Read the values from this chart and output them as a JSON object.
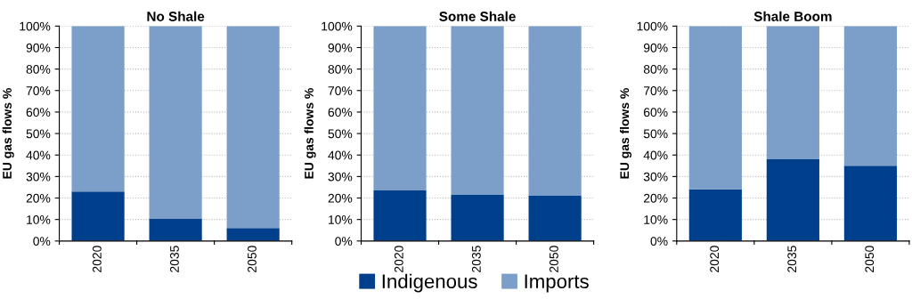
{
  "chart_data": [
    {
      "type": "bar",
      "title": "No Shale",
      "ylabel": "EU gas flows %",
      "categories": [
        "2020",
        "2035",
        "2050"
      ],
      "stacked": true,
      "series": [
        {
          "color": "#003f8c",
          "values": [
            23,
            10.5,
            6
          ]
        },
        {
          "color": "#7b9fc8",
          "values": [
            77,
            89.5,
            94
          ]
        }
      ],
      "ylim": [
        0,
        100
      ],
      "yticks": [
        {
          "value": 0,
          "label": "0%"
        },
        {
          "value": 10,
          "label": "10%"
        },
        {
          "value": 20,
          "label": "20%"
        },
        {
          "value": 30,
          "label": "30%"
        },
        {
          "value": 40,
          "label": "40%"
        },
        {
          "value": 50,
          "label": "50%"
        },
        {
          "value": 60,
          "label": "60%"
        },
        {
          "value": 70,
          "label": "70%"
        },
        {
          "value": 80,
          "label": "80%"
        },
        {
          "value": 90,
          "label": "90%"
        },
        {
          "value": 100,
          "label": "100%"
        }
      ],
      "grid": "y"
    },
    {
      "type": "bar",
      "title": "Some Shale",
      "ylabel": "EU gas flows %",
      "categories": [
        "2020",
        "2035",
        "2050"
      ],
      "stacked": true,
      "series": [
        {
          "name": "Indigenous",
          "color": "#003f8c",
          "values": [
            23.5,
            21.5,
            21
          ]
        },
        {
          "name": "Imports",
          "color": "#7b9fc8",
          "values": [
            76.5,
            78.5,
            79
          ]
        }
      ],
      "ylim": [
        0,
        100
      ],
      "yticks": [
        {
          "value": 0,
          "label": "0%"
        },
        {
          "value": 10,
          "label": "10%"
        },
        {
          "value": 20,
          "label": "20%"
        },
        {
          "value": 30,
          "label": "30%"
        },
        {
          "value": 40,
          "label": "40%"
        },
        {
          "value": 50,
          "label": "50%"
        },
        {
          "value": 60,
          "label": "60%"
        },
        {
          "value": 70,
          "label": "70%"
        },
        {
          "value": 80,
          "label": "80%"
        },
        {
          "value": 90,
          "label": "90%"
        },
        {
          "value": 100,
          "label": "100%"
        }
      ],
      "grid": "y",
      "legend": "bottom"
    },
    {
      "type": "bar",
      "title": "Shale Boom",
      "ylabel": "EU gas flows %",
      "categories": [
        "2020",
        "2035",
        "2050"
      ],
      "stacked": true,
      "series": [
        {
          "color": "#003f8c",
          "values": [
            24,
            38,
            35
          ]
        },
        {
          "color": "#7b9fc8",
          "values": [
            76,
            62,
            65
          ]
        }
      ],
      "ylim": [
        0,
        100
      ],
      "yticks": [
        {
          "value": 0,
          "label": "0%"
        },
        {
          "value": 10,
          "label": "10%"
        },
        {
          "value": 20,
          "label": "20%"
        },
        {
          "value": 30,
          "label": "30%"
        },
        {
          "value": 40,
          "label": "40%"
        },
        {
          "value": 50,
          "label": "50%"
        },
        {
          "value": 60,
          "label": "60%"
        },
        {
          "value": 70,
          "label": "70%"
        },
        {
          "value": 80,
          "label": "80%"
        },
        {
          "value": 90,
          "label": "90%"
        },
        {
          "value": 100,
          "label": "100%"
        }
      ],
      "grid": "y"
    }
  ]
}
